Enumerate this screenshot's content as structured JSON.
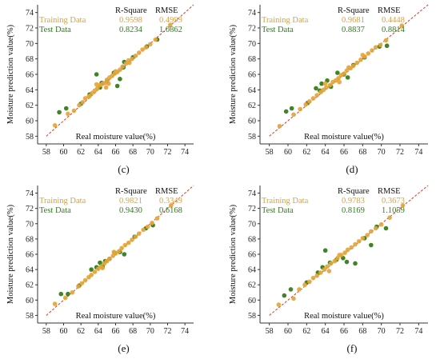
{
  "chart_data": [
    {
      "type": "scatter",
      "panel_label": "(c)",
      "xlabel": "Real moisture value(%)",
      "ylabel": "Moisture prediction value(%)",
      "xlim": [
        57,
        75
      ],
      "ylim": [
        57,
        75
      ],
      "xticks": [
        "58",
        "60",
        "62",
        "64",
        "66",
        "68",
        "70",
        "72",
        "74"
      ],
      "yticks": [
        "58",
        "60",
        "62",
        "64",
        "66",
        "68",
        "70",
        "72",
        "74"
      ],
      "reference_line": "y = x",
      "stats": {
        "header": [
          "R-Square",
          "RMSE"
        ],
        "training": {
          "label": "Training Data",
          "r2": "0.9598",
          "rmse": "0.4999"
        },
        "test": {
          "label": "Test Data",
          "r2": "0.8234",
          "rmse": "1.0862"
        }
      },
      "series": [
        {
          "name": "Training Data",
          "color": "#e3a53a",
          "points": [
            [
              59.0,
              59.4
            ],
            [
              60.5,
              60.9
            ],
            [
              61.2,
              61.3
            ],
            [
              61.8,
              62.0
            ],
            [
              62.2,
              62.4
            ],
            [
              62.5,
              62.9
            ],
            [
              63.0,
              63.2
            ],
            [
              63.3,
              63.6
            ],
            [
              63.6,
              63.9
            ],
            [
              63.9,
              64.2
            ],
            [
              64.2,
              64.6
            ],
            [
              64.5,
              64.8
            ],
            [
              64.8,
              64.9
            ],
            [
              65.0,
              65.3
            ],
            [
              65.3,
              65.6
            ],
            [
              65.6,
              65.8
            ],
            [
              65.9,
              66.1
            ],
            [
              66.2,
              66.3
            ],
            [
              66.5,
              66.6
            ],
            [
              66.8,
              67.0
            ],
            [
              67.2,
              67.4
            ],
            [
              67.5,
              67.8
            ],
            [
              67.9,
              68.0
            ],
            [
              68.3,
              68.4
            ],
            [
              68.7,
              68.8
            ],
            [
              69.1,
              69.2
            ],
            [
              69.5,
              69.5
            ],
            [
              70.0,
              69.9
            ],
            [
              70.6,
              70.5
            ],
            [
              72.3,
              72.4
            ],
            [
              63.8,
              64.7
            ],
            [
              64.9,
              64.3
            ],
            [
              66.0,
              66.4
            ],
            [
              67.6,
              67.5
            ],
            [
              62.9,
              63.1
            ],
            [
              65.2,
              64.8
            ]
          ]
        },
        {
          "name": "Test Data",
          "color": "#2f7a12",
          "points": [
            [
              59.5,
              61.1
            ],
            [
              60.3,
              61.6
            ],
            [
              62.0,
              62.2
            ],
            [
              63.0,
              63.4
            ],
            [
              63.8,
              66.0
            ],
            [
              64.4,
              64.9
            ],
            [
              65.0,
              65.1
            ],
            [
              65.8,
              66.2
            ],
            [
              66.2,
              64.5
            ],
            [
              66.5,
              65.4
            ],
            [
              67.0,
              67.6
            ],
            [
              68.0,
              68.2
            ],
            [
              69.6,
              69.6
            ],
            [
              70.8,
              70.5
            ],
            [
              64.2,
              64.3
            ],
            [
              66.9,
              66.9
            ]
          ]
        }
      ]
    },
    {
      "type": "scatter",
      "panel_label": "(d)",
      "xlabel": "Real moisture value(%)",
      "ylabel": "Moisture prediction value(%)",
      "xlim": [
        57,
        75
      ],
      "ylim": [
        57,
        75
      ],
      "xticks": [
        "58",
        "60",
        "62",
        "64",
        "66",
        "68",
        "70",
        "72",
        "74"
      ],
      "yticks": [
        "58",
        "60",
        "62",
        "64",
        "66",
        "68",
        "70",
        "72",
        "74"
      ],
      "reference_line": "y = x",
      "stats": {
        "header": [
          "R-Square",
          "RMSE"
        ],
        "training": {
          "label": "Training Data",
          "r2": "0.9681",
          "rmse": "0.4448"
        },
        "test": {
          "label": "Test Data",
          "r2": "0.8837",
          "rmse": "0.8814"
        }
      },
      "series": [
        {
          "name": "Training Data",
          "color": "#e3a53a",
          "points": [
            [
              59.1,
              59.3
            ],
            [
              60.6,
              60.8
            ],
            [
              61.3,
              61.5
            ],
            [
              61.9,
              62.1
            ],
            [
              62.3,
              62.5
            ],
            [
              62.7,
              62.9
            ],
            [
              63.1,
              63.3
            ],
            [
              63.5,
              63.7
            ],
            [
              63.8,
              64.0
            ],
            [
              64.1,
              64.3
            ],
            [
              64.5,
              64.6
            ],
            [
              64.8,
              65.0
            ],
            [
              65.1,
              65.2
            ],
            [
              65.4,
              65.5
            ],
            [
              65.7,
              65.9
            ],
            [
              66.0,
              66.1
            ],
            [
              66.3,
              66.5
            ],
            [
              66.7,
              66.8
            ],
            [
              67.0,
              67.1
            ],
            [
              67.4,
              67.5
            ],
            [
              67.8,
              67.9
            ],
            [
              68.2,
              68.3
            ],
            [
              68.6,
              68.7
            ],
            [
              69.0,
              69.1
            ],
            [
              69.4,
              69.5
            ],
            [
              69.9,
              69.8
            ],
            [
              70.5,
              70.4
            ],
            [
              72.2,
              72.3
            ],
            [
              64.0,
              64.8
            ],
            [
              65.5,
              65.0
            ],
            [
              66.5,
              66.9
            ],
            [
              68.0,
              68.5
            ]
          ]
        },
        {
          "name": "Test Data",
          "color": "#2f7a12",
          "points": [
            [
              59.8,
              61.2
            ],
            [
              60.4,
              61.6
            ],
            [
              62.1,
              62.3
            ],
            [
              63.0,
              64.2
            ],
            [
              63.6,
              64.8
            ],
            [
              64.2,
              65.2
            ],
            [
              64.6,
              64.4
            ],
            [
              65.3,
              66.2
            ],
            [
              66.0,
              66.0
            ],
            [
              66.4,
              65.6
            ],
            [
              67.0,
              67.2
            ],
            [
              68.2,
              68.2
            ],
            [
              69.8,
              69.6
            ],
            [
              70.6,
              69.7
            ],
            [
              63.4,
              63.9
            ]
          ]
        }
      ]
    },
    {
      "type": "scatter",
      "panel_label": "(e)",
      "xlabel": "Real moisture value(%)",
      "ylabel": "Moisture prediction value(%)",
      "xlim": [
        57,
        75
      ],
      "ylim": [
        57,
        75
      ],
      "xticks": [
        "58",
        "60",
        "62",
        "64",
        "66",
        "68",
        "70",
        "72",
        "74"
      ],
      "yticks": [
        "58",
        "60",
        "62",
        "64",
        "66",
        "68",
        "70",
        "72",
        "74"
      ],
      "reference_line": "y = x",
      "stats": {
        "header": [
          "R-Square",
          "RMSE"
        ],
        "training": {
          "label": "Training Data",
          "r2": "0.9821",
          "rmse": "0.3349"
        },
        "test": {
          "label": "Test Data",
          "r2": "0.9430",
          "rmse": "0.6168"
        }
      },
      "series": [
        {
          "name": "Training Data",
          "color": "#e3a53a",
          "points": [
            [
              59.0,
              59.5
            ],
            [
              60.2,
              60.3
            ],
            [
              61.0,
              61.0
            ],
            [
              61.7,
              61.8
            ],
            [
              62.1,
              62.2
            ],
            [
              62.5,
              62.6
            ],
            [
              62.9,
              63.0
            ],
            [
              63.2,
              63.3
            ],
            [
              63.6,
              63.7
            ],
            [
              64.0,
              64.1
            ],
            [
              64.3,
              64.4
            ],
            [
              64.7,
              64.8
            ],
            [
              65.0,
              65.1
            ],
            [
              65.3,
              65.4
            ],
            [
              65.7,
              65.8
            ],
            [
              66.0,
              66.1
            ],
            [
              66.4,
              66.4
            ],
            [
              66.7,
              66.8
            ],
            [
              67.1,
              67.2
            ],
            [
              67.5,
              67.5
            ],
            [
              67.9,
              67.9
            ],
            [
              68.3,
              68.3
            ],
            [
              68.7,
              68.7
            ],
            [
              69.2,
              69.2
            ],
            [
              69.7,
              69.6
            ],
            [
              70.2,
              70.1
            ],
            [
              70.8,
              70.7
            ],
            [
              72.4,
              72.4
            ],
            [
              64.5,
              64.2
            ],
            [
              65.8,
              66.3
            ]
          ]
        },
        {
          "name": "Test Data",
          "color": "#2f7a12",
          "points": [
            [
              59.7,
              60.8
            ],
            [
              60.5,
              60.8
            ],
            [
              61.8,
              61.9
            ],
            [
              63.2,
              64.0
            ],
            [
              63.8,
              64.3
            ],
            [
              64.2,
              64.9
            ],
            [
              64.8,
              65.1
            ],
            [
              65.3,
              65.4
            ],
            [
              65.9,
              66.2
            ],
            [
              66.5,
              66.3
            ],
            [
              67.0,
              66.0
            ],
            [
              68.2,
              68.3
            ],
            [
              69.5,
              69.4
            ],
            [
              70.3,
              69.8
            ],
            [
              64.5,
              64.4
            ]
          ]
        }
      ]
    },
    {
      "type": "scatter",
      "panel_label": "(f)",
      "xlabel": "Real moisture value(%)",
      "ylabel": "Moisture prediction value(%)",
      "xlim": [
        57,
        75
      ],
      "ylim": [
        57,
        75
      ],
      "xticks": [
        "58",
        "60",
        "62",
        "64",
        "66",
        "68",
        "70",
        "72",
        "74"
      ],
      "yticks": [
        "58",
        "60",
        "62",
        "64",
        "66",
        "68",
        "70",
        "72",
        "74"
      ],
      "reference_line": "y = x",
      "stats": {
        "header": [
          "R-Square",
          "RMSE"
        ],
        "training": {
          "label": "Training Data",
          "r2": "0.9783",
          "rmse": "0.3673"
        },
        "test": {
          "label": "Test Data",
          "r2": "0.8169",
          "rmse": "1.1059"
        }
      },
      "series": [
        {
          "name": "Training Data",
          "color": "#e3a53a",
          "points": [
            [
              59.0,
              59.4
            ],
            [
              60.6,
              60.2
            ],
            [
              61.2,
              61.4
            ],
            [
              61.8,
              62.0
            ],
            [
              62.3,
              62.4
            ],
            [
              62.7,
              62.9
            ],
            [
              63.1,
              63.2
            ],
            [
              63.5,
              63.6
            ],
            [
              63.9,
              64.0
            ],
            [
              64.2,
              64.4
            ],
            [
              64.6,
              64.8
            ],
            [
              65.0,
              65.1
            ],
            [
              65.3,
              65.5
            ],
            [
              65.7,
              65.9
            ],
            [
              66.1,
              66.2
            ],
            [
              66.4,
              66.6
            ],
            [
              66.8,
              66.9
            ],
            [
              67.2,
              67.3
            ],
            [
              67.6,
              67.7
            ],
            [
              68.0,
              68.1
            ],
            [
              68.5,
              68.5
            ],
            [
              68.9,
              69.0
            ],
            [
              69.4,
              69.4
            ],
            [
              70.0,
              69.9
            ],
            [
              70.9,
              70.8
            ],
            [
              72.3,
              72.4
            ],
            [
              64.4,
              63.8
            ],
            [
              65.5,
              65.9
            ]
          ]
        },
        {
          "name": "Test Data",
          "color": "#2f7a12",
          "points": [
            [
              59.6,
              60.6
            ],
            [
              60.3,
              61.4
            ],
            [
              62.0,
              62.3
            ],
            [
              63.2,
              63.6
            ],
            [
              64.0,
              66.5
            ],
            [
              64.5,
              64.9
            ],
            [
              65.2,
              65.3
            ],
            [
              65.9,
              65.5
            ],
            [
              66.3,
              65.0
            ],
            [
              67.2,
              64.8
            ],
            [
              68.2,
              68.1
            ],
            [
              68.9,
              67.2
            ],
            [
              69.5,
              69.6
            ],
            [
              70.5,
              69.4
            ],
            [
              63.7,
              64.3
            ]
          ]
        }
      ]
    }
  ]
}
